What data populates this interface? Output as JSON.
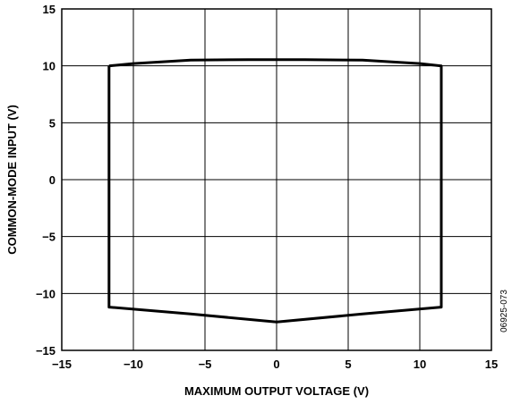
{
  "chart_data": {
    "type": "line",
    "xlabel": "MAXIMUM OUTPUT VOLTAGE (V)",
    "ylabel": "COMMON-MODE INPUT (V)",
    "xlim": [
      -15,
      15
    ],
    "ylim": [
      -15,
      15
    ],
    "xticks": [
      -15,
      -10,
      -5,
      0,
      5,
      10,
      15
    ],
    "yticks": [
      -15,
      -10,
      -5,
      0,
      5,
      10,
      15
    ],
    "xtick_labels": [
      "−15",
      "−10",
      "−5",
      "0",
      "5",
      "10",
      "15"
    ],
    "ytick_labels": [
      "−15",
      "−10",
      "−5",
      "0",
      "5",
      "10",
      "15"
    ],
    "grid": true,
    "legend": "none",
    "figure_id": "06925-073",
    "series": [
      {
        "x": [
          -11.7,
          -10.0,
          -6.0,
          -2.0,
          0.0,
          2.0,
          6.0,
          10.0,
          11.5,
          11.5,
          6.0,
          0.0,
          -6.0,
          -11.7,
          -11.7
        ],
        "y": [
          10.0,
          10.2,
          10.5,
          10.55,
          10.55,
          10.55,
          10.5,
          10.2,
          10.0,
          -11.2,
          -11.8,
          -12.5,
          -11.8,
          -11.2,
          10.0
        ]
      }
    ]
  }
}
